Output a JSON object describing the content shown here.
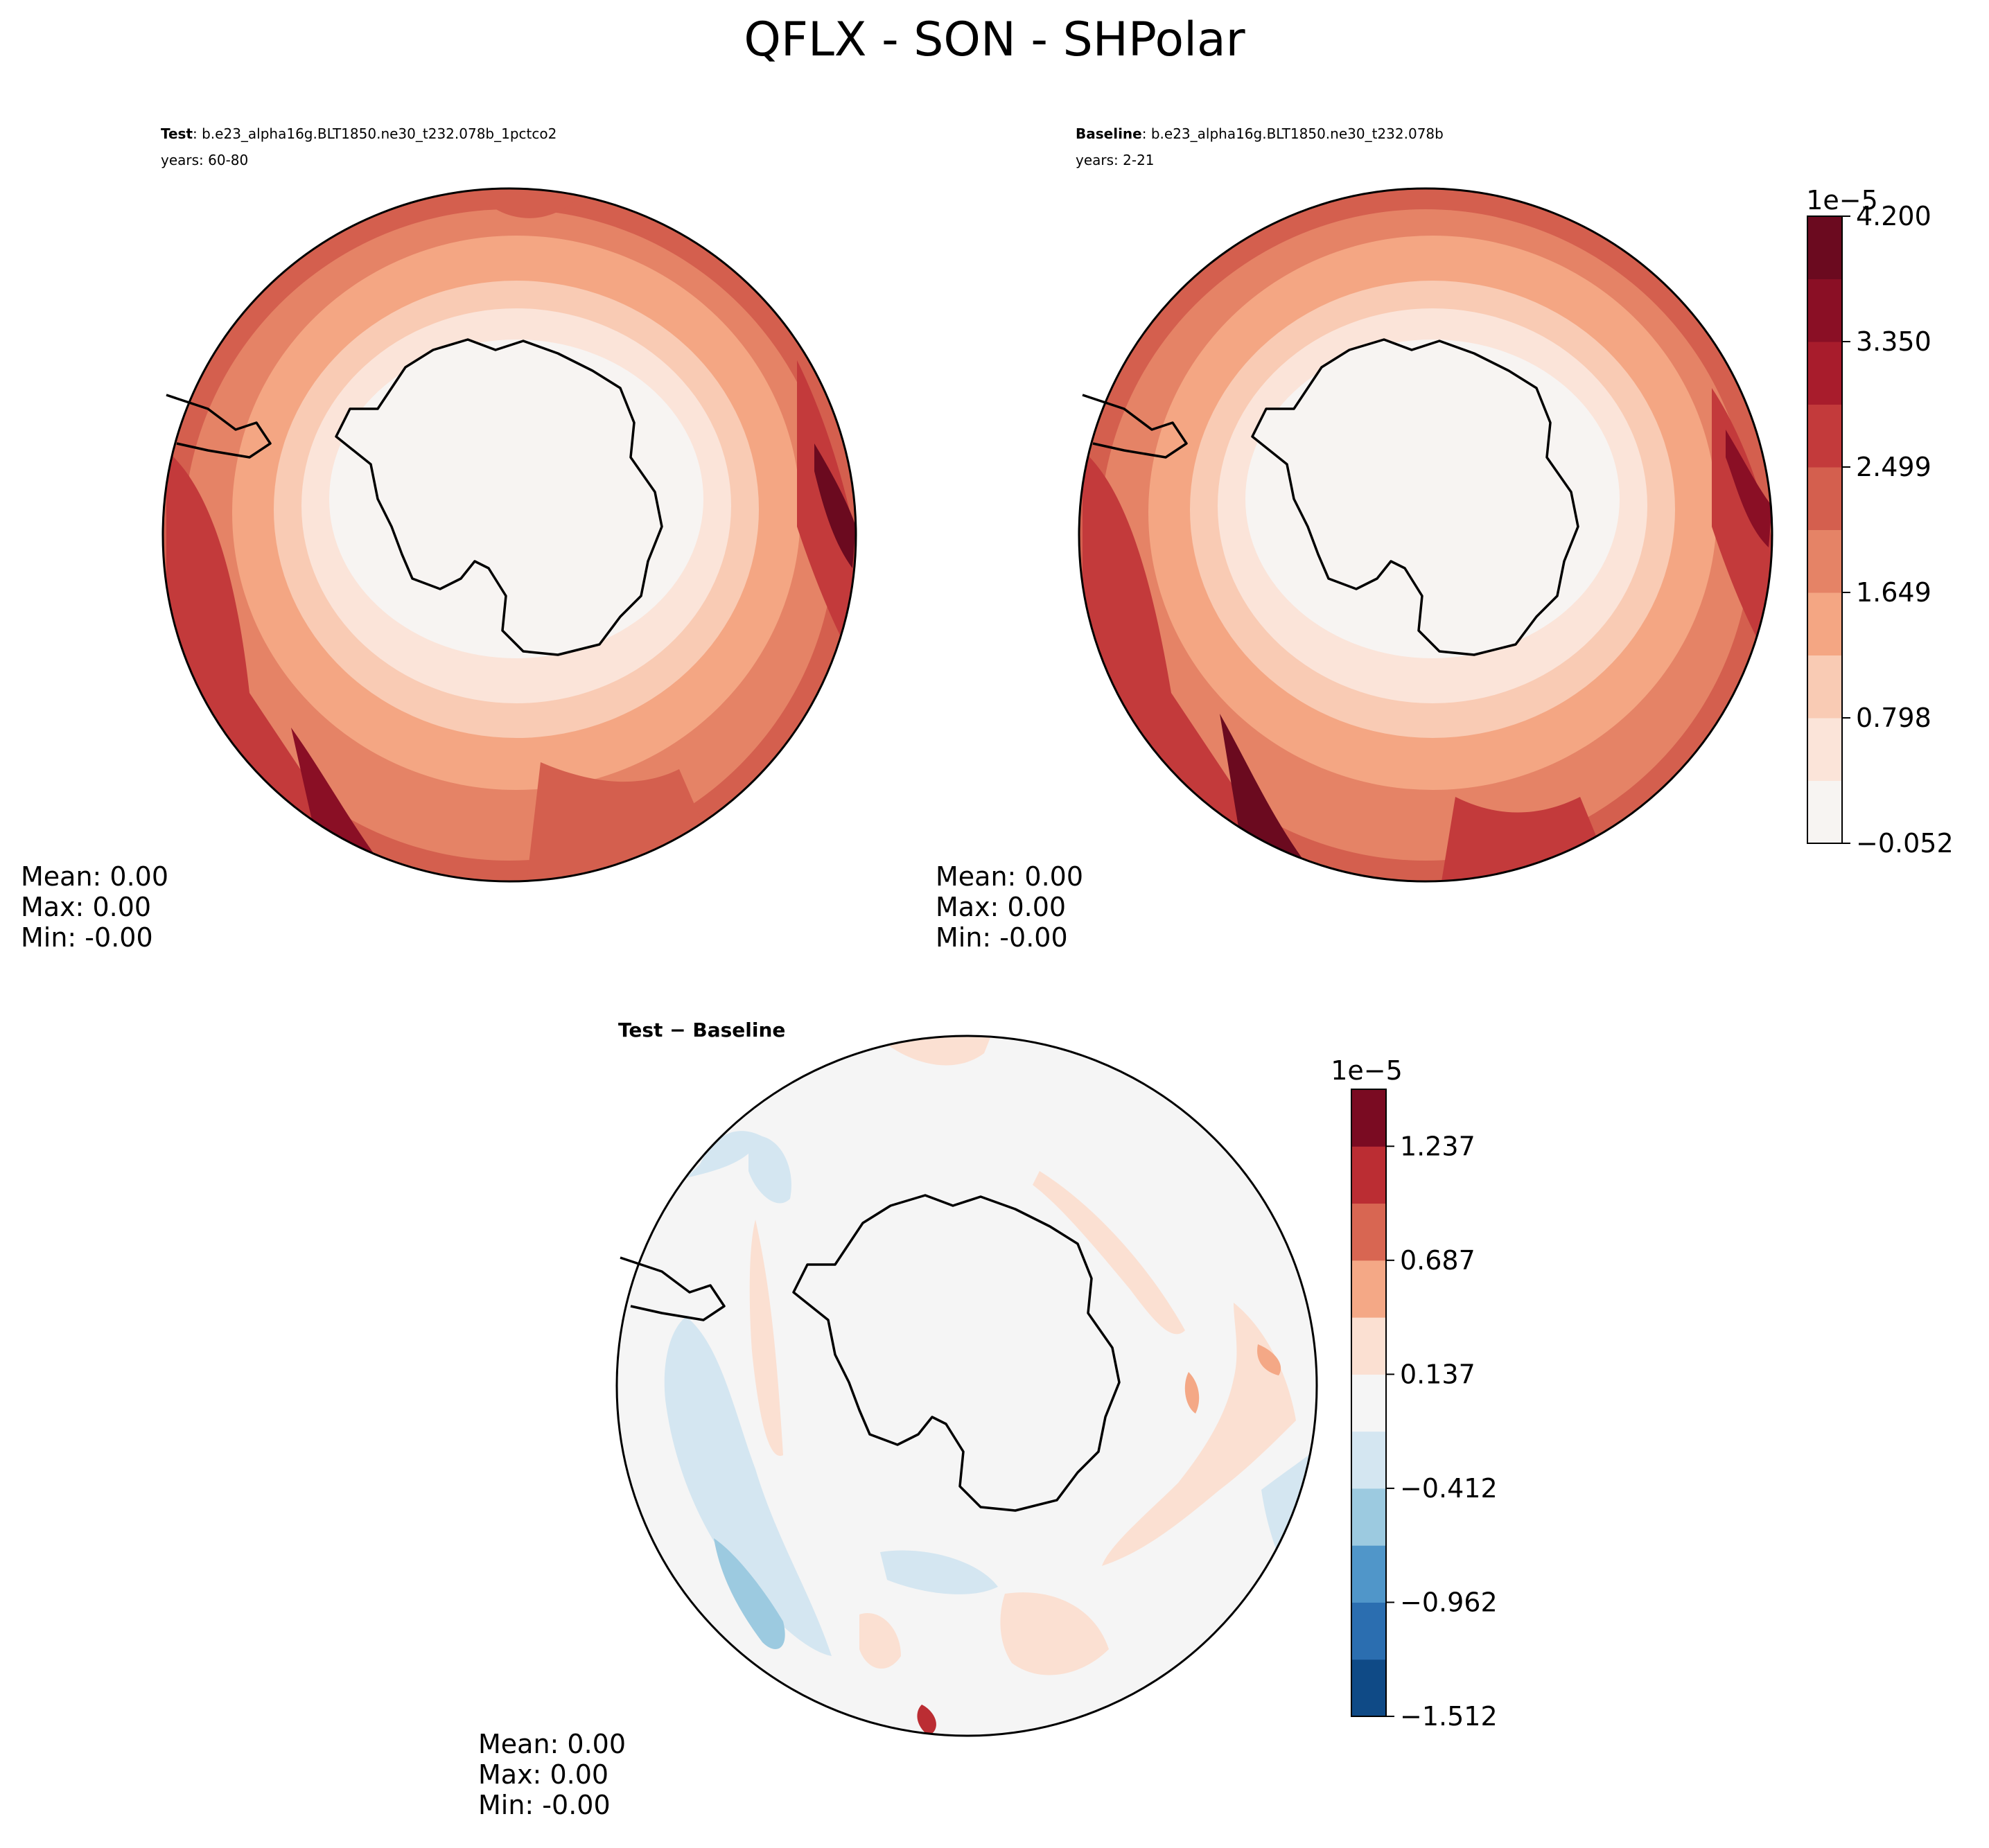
{
  "title": "QFLX - SON - SHPolar",
  "panels": {
    "test": {
      "label_bold": "Test",
      "label_rest": ": b.e23_alpha16g.BLT1850.ne30_t232.078b_1pctco2",
      "years": "years: 60-80",
      "stats": {
        "mean": "Mean:  0.00",
        "max": "Max:  0.00",
        "min": "Min: -0.00"
      }
    },
    "baseline": {
      "label_bold": "Baseline",
      "label_rest": ": b.e23_alpha16g.BLT1850.ne30_t232.078b",
      "years": "years: 2-21",
      "stats": {
        "mean": "Mean:  0.00",
        "max": "Max:  0.00",
        "min": "Min: -0.00"
      }
    },
    "diff": {
      "label": "Test − Baseline",
      "stats": {
        "mean": "Mean:  0.00",
        "max": "Max:  0.00",
        "min": "Min: -0.00"
      }
    }
  },
  "colorbar_main": {
    "exponent": "1e−5",
    "tick_labels": [
      "4.200",
      "3.350",
      "2.499",
      "1.649",
      "0.798",
      "−0.052"
    ],
    "colors": [
      "#f7f4f2",
      "#fbe4d9",
      "#f9cbb4",
      "#f4a683",
      "#e58366",
      "#d45f4e",
      "#c33a3b",
      "#a81c2c",
      "#8a0f25",
      "#6b0a1f"
    ]
  },
  "colorbar_diff": {
    "exponent": "1e−5",
    "tick_labels": [
      "1.237",
      "0.687",
      "0.137",
      "−0.412",
      "−0.962",
      "−1.512"
    ],
    "colors": [
      "#0f4a86",
      "#2b6eb0",
      "#5096c9",
      "#9ccae0",
      "#d4e6f1",
      "#f5f5f5",
      "#fbe0d2",
      "#f4a886",
      "#d86652",
      "#bb2d33",
      "#7a0b22"
    ]
  }
}
